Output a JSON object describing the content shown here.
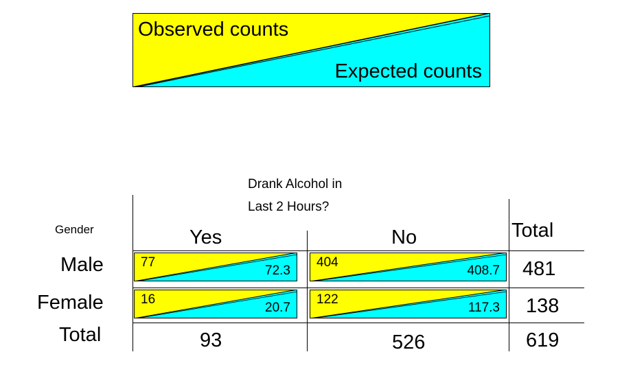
{
  "legend": {
    "observed_label": "Observed counts",
    "expected_label": "Expected counts",
    "observed_color": "#ffff00",
    "expected_color": "#00ffff"
  },
  "table": {
    "question_line1": "Drank Alcohol in",
    "question_line2": "Last 2 Hours?",
    "row_header": "Gender",
    "columns": [
      "Yes",
      "No",
      "Total"
    ],
    "rows": [
      {
        "label": "Male",
        "cells": [
          {
            "observed": "77",
            "expected": "72.3"
          },
          {
            "observed": "404",
            "expected": "408.7"
          }
        ],
        "total": "481"
      },
      {
        "label": "Female",
        "cells": [
          {
            "observed": "16",
            "expected": "20.7"
          },
          {
            "observed": "122",
            "expected": "117.3"
          }
        ],
        "total": "138"
      }
    ],
    "total_row": {
      "label": "Total",
      "values": [
        "93",
        "526",
        "619"
      ]
    }
  }
}
